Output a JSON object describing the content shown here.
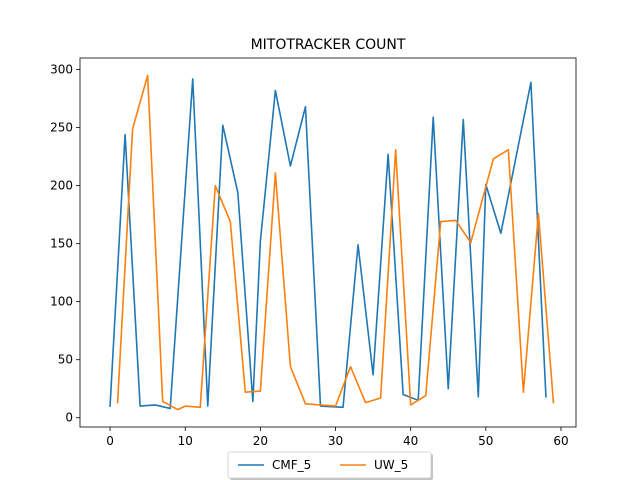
{
  "chart_data": {
    "type": "line",
    "title": "MITOTRACKER COUNT",
    "xlabel": "",
    "ylabel": "",
    "xlim": [
      -4,
      62
    ],
    "ylim": [
      -8,
      310
    ],
    "x_ticks": [
      0,
      10,
      20,
      30,
      40,
      50,
      60
    ],
    "y_ticks": [
      0,
      50,
      100,
      150,
      200,
      250,
      300
    ],
    "grid": false,
    "legend": "bottom-center",
    "series": [
      {
        "name": "CMF_5",
        "color": "#1f77b4",
        "x": [
          0,
          2,
          4,
          6,
          8,
          11,
          13,
          15,
          17,
          19,
          20,
          22,
          24,
          26,
          28,
          31,
          33,
          35,
          37,
          39,
          41,
          43,
          45,
          47,
          49,
          50,
          52,
          56,
          58
        ],
        "y": [
          10,
          244,
          10,
          11,
          8,
          292,
          10,
          252,
          194,
          14,
          152,
          282,
          217,
          268,
          10,
          9,
          149,
          37,
          227,
          20,
          15,
          259,
          25,
          257,
          18,
          201,
          159,
          289,
          18
        ]
      },
      {
        "name": "UW_5",
        "color": "#ff7f0e",
        "x": [
          1,
          3,
          5,
          7,
          9,
          10,
          12,
          14,
          16,
          18,
          20,
          22,
          24,
          26,
          28,
          30,
          32,
          34,
          36,
          38,
          40,
          42,
          44,
          46,
          48,
          51,
          53,
          55,
          57,
          59
        ],
        "y": [
          13,
          249,
          295,
          14,
          7,
          10,
          9,
          200,
          169,
          22,
          23,
          211,
          44,
          12,
          11,
          10,
          44,
          13,
          17,
          231,
          11,
          19,
          169,
          170,
          151,
          223,
          231,
          22,
          176,
          13
        ]
      }
    ]
  }
}
